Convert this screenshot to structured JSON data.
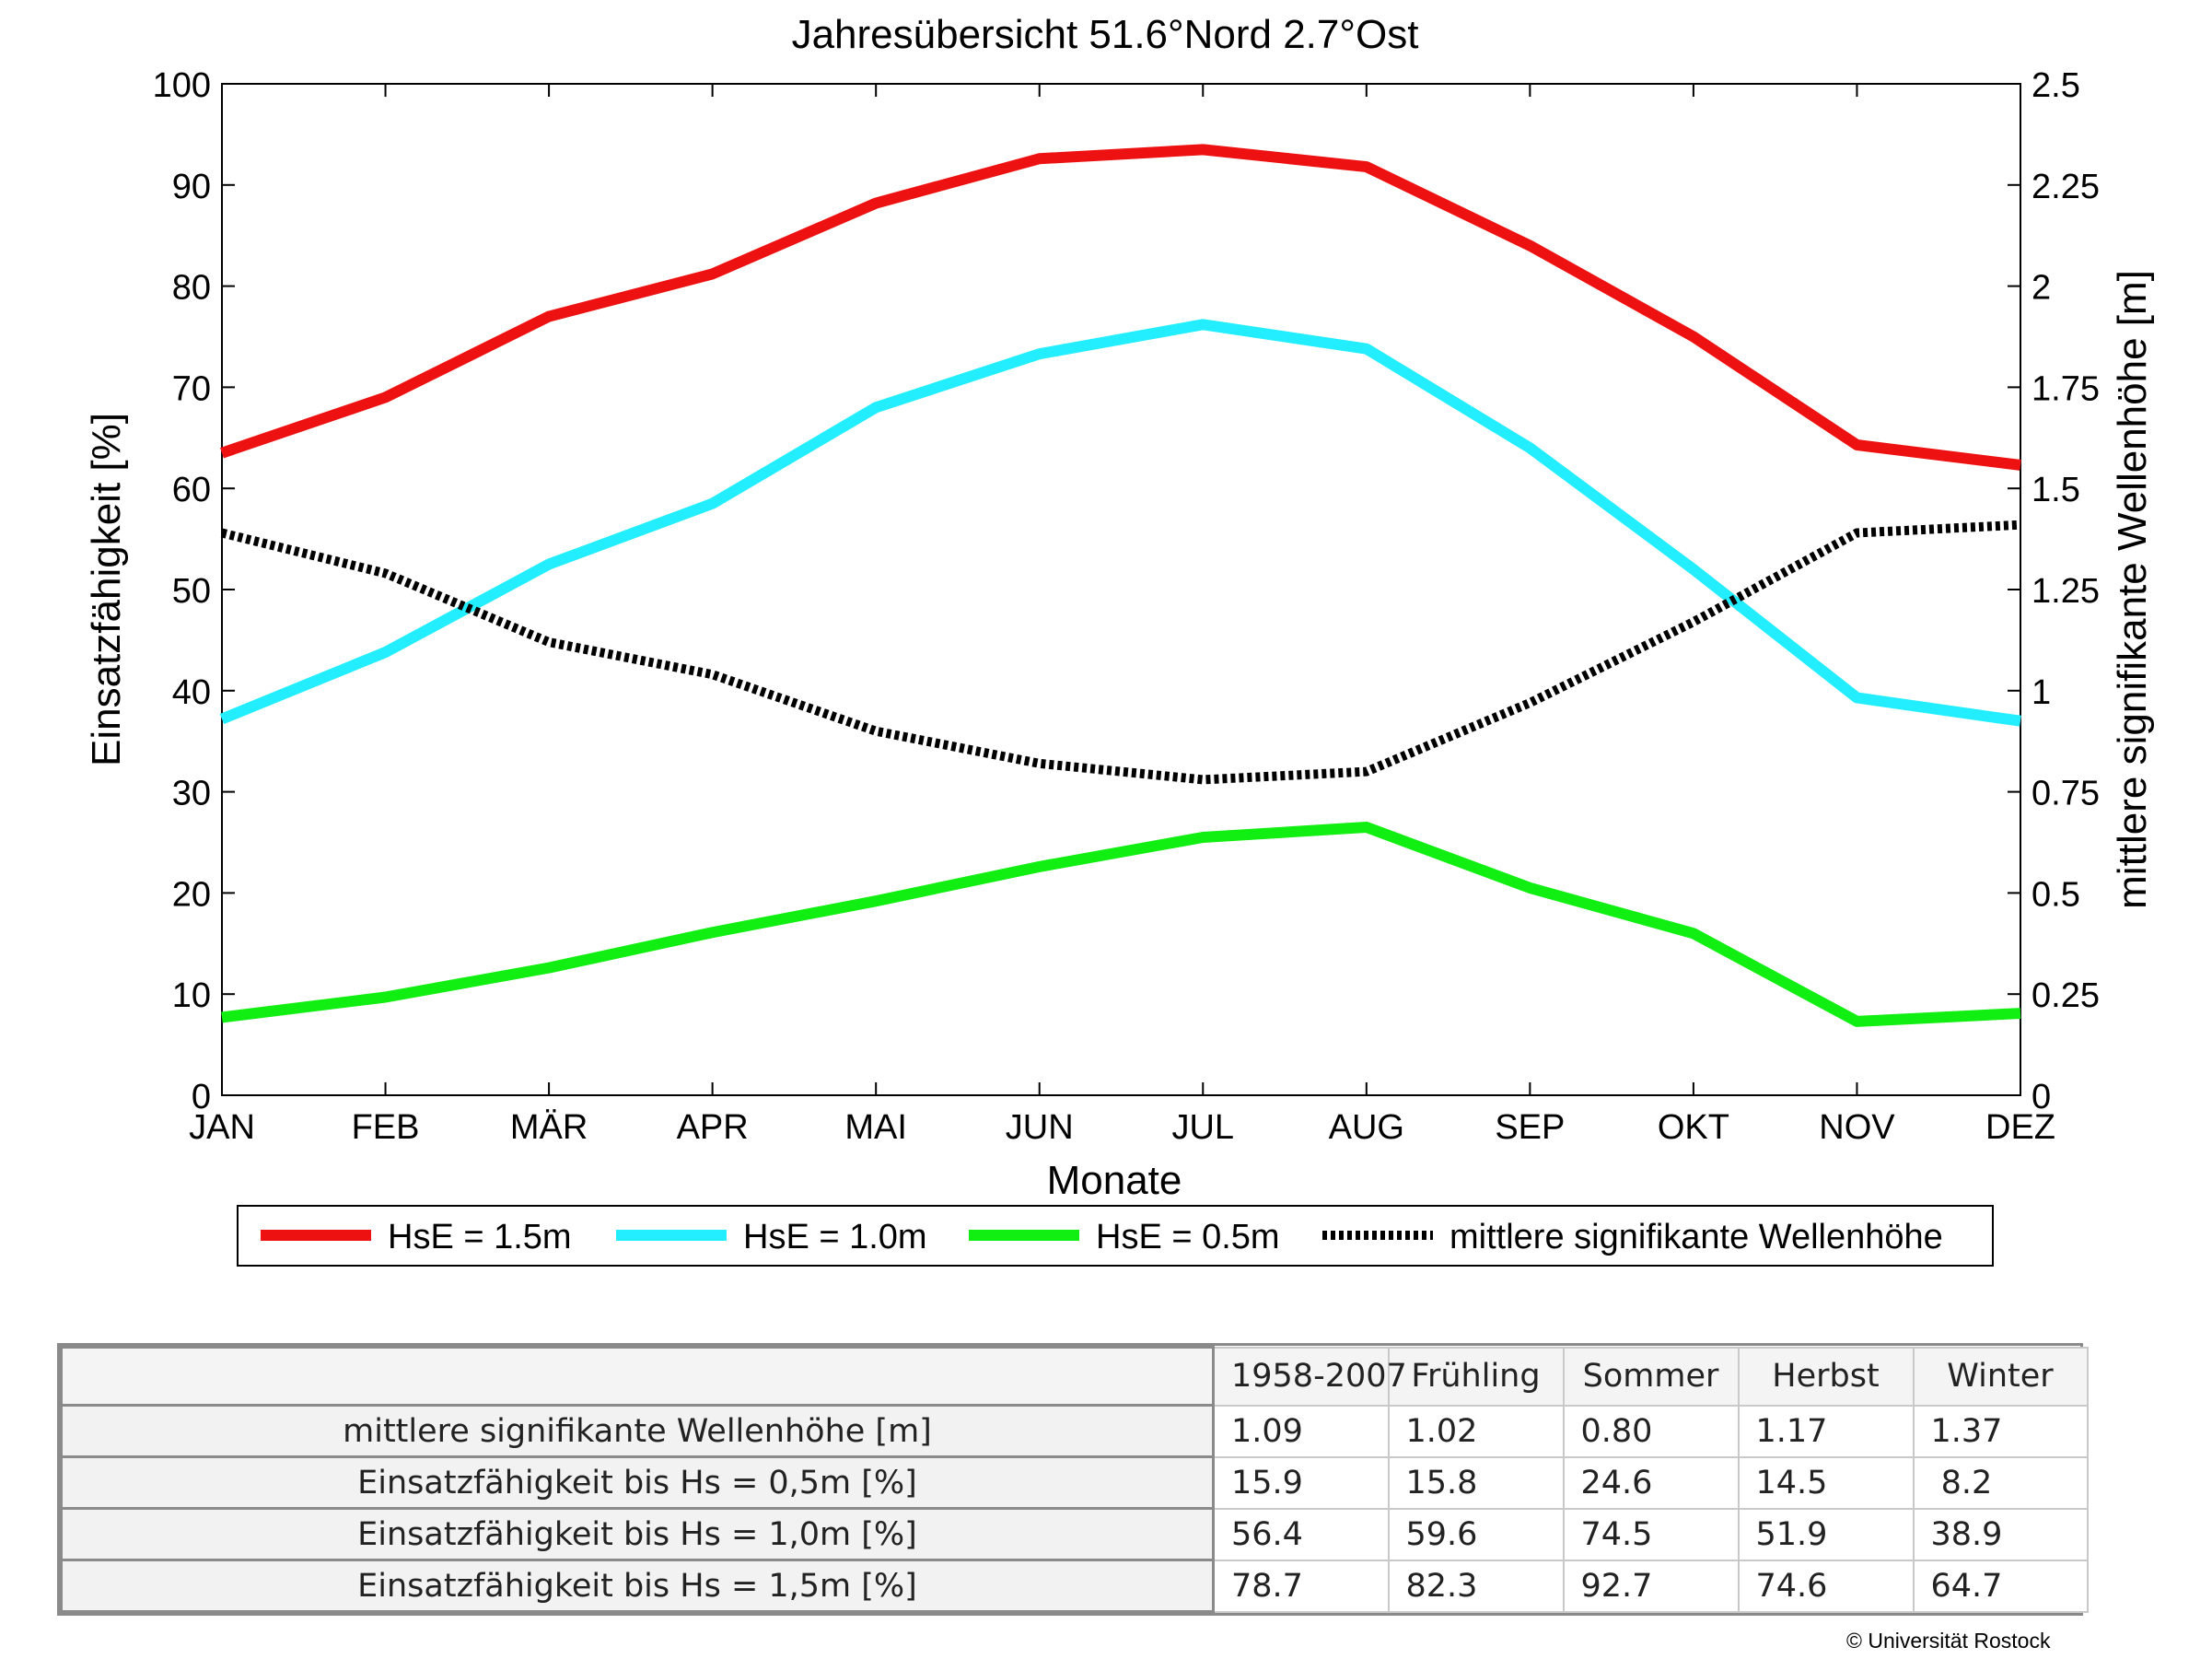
{
  "chart_data": {
    "type": "line",
    "title": "Jahresübersicht  51.6°Nord  2.7°Ost",
    "xlabel": "Monate",
    "ylabel": "Einsatzfähigkeit [%]",
    "ylabel_right": "mittlere signifikante Wellenhöhe [m]",
    "categories": [
      "JAN",
      "FEB",
      "MÄR",
      "APR",
      "MAI",
      "JUN",
      "JUL",
      "AUG",
      "SEP",
      "OKT",
      "NOV",
      "DEZ"
    ],
    "ylim": [
      0,
      100
    ],
    "ylim_right": [
      0,
      2.5
    ],
    "yticks": [
      "0",
      "10",
      "20",
      "30",
      "40",
      "50",
      "60",
      "70",
      "80",
      "90",
      "100"
    ],
    "yticks_right": [
      "0",
      "0.25",
      "0.5",
      "0.75",
      "1",
      "1.25",
      "1.5",
      "1.75",
      "2",
      "2.25",
      "2.5"
    ],
    "grid": false,
    "legend_position": "bottom",
    "series": [
      {
        "name": "HsE = 1.5m",
        "axis": "left",
        "color": "#ee1111",
        "style": "solid",
        "values": [
          63.5,
          69,
          77,
          81.2,
          88.2,
          92.6,
          93.5,
          91.8,
          84,
          75,
          64.3,
          62.3
        ]
      },
      {
        "name": "HsE = 1.0m",
        "axis": "left",
        "color": "#22eeff",
        "style": "solid",
        "values": [
          37.2,
          43.8,
          52.5,
          58.5,
          68,
          73.3,
          76.2,
          73.8,
          64,
          52,
          39.3,
          37
        ]
      },
      {
        "name": "HsE = 0.5m",
        "axis": "left",
        "color": "#11ee11",
        "style": "solid",
        "values": [
          7.7,
          9.7,
          12.6,
          16.1,
          19.2,
          22.6,
          25.5,
          26.5,
          20.5,
          16,
          7.3,
          8.1
        ]
      },
      {
        "name": "mittlere signifikante Wellenhöhe",
        "axis": "right",
        "color": "#000000",
        "style": "dotted",
        "values": [
          1.39,
          1.29,
          1.12,
          1.04,
          0.9,
          0.82,
          0.78,
          0.8,
          0.97,
          1.17,
          1.39,
          1.41
        ]
      }
    ]
  },
  "table": {
    "columns": [
      "",
      "1958-2007",
      "Frühling",
      "Sommer",
      "Herbst",
      "Winter"
    ],
    "rows": [
      {
        "label": "mittlere signifikante Wellenhöhe [m]",
        "values": [
          "1.09",
          "1.02",
          "0.80",
          "1.17",
          "1.37"
        ]
      },
      {
        "label": "Einsatzfähigkeit bis Hs = 0,5m [%]",
        "values": [
          "15.9",
          "15.8",
          "24.6",
          "14.5",
          " 8.2"
        ]
      },
      {
        "label": "Einsatzfähigkeit bis Hs = 1,0m [%]",
        "values": [
          "56.4",
          "59.6",
          "74.5",
          "51.9",
          "38.9"
        ]
      },
      {
        "label": "Einsatzfähigkeit bis Hs = 1,5m [%]",
        "values": [
          "78.7",
          "82.3",
          "92.7",
          "74.6",
          "64.7"
        ]
      }
    ]
  },
  "copyright": "© Universität Rostock"
}
